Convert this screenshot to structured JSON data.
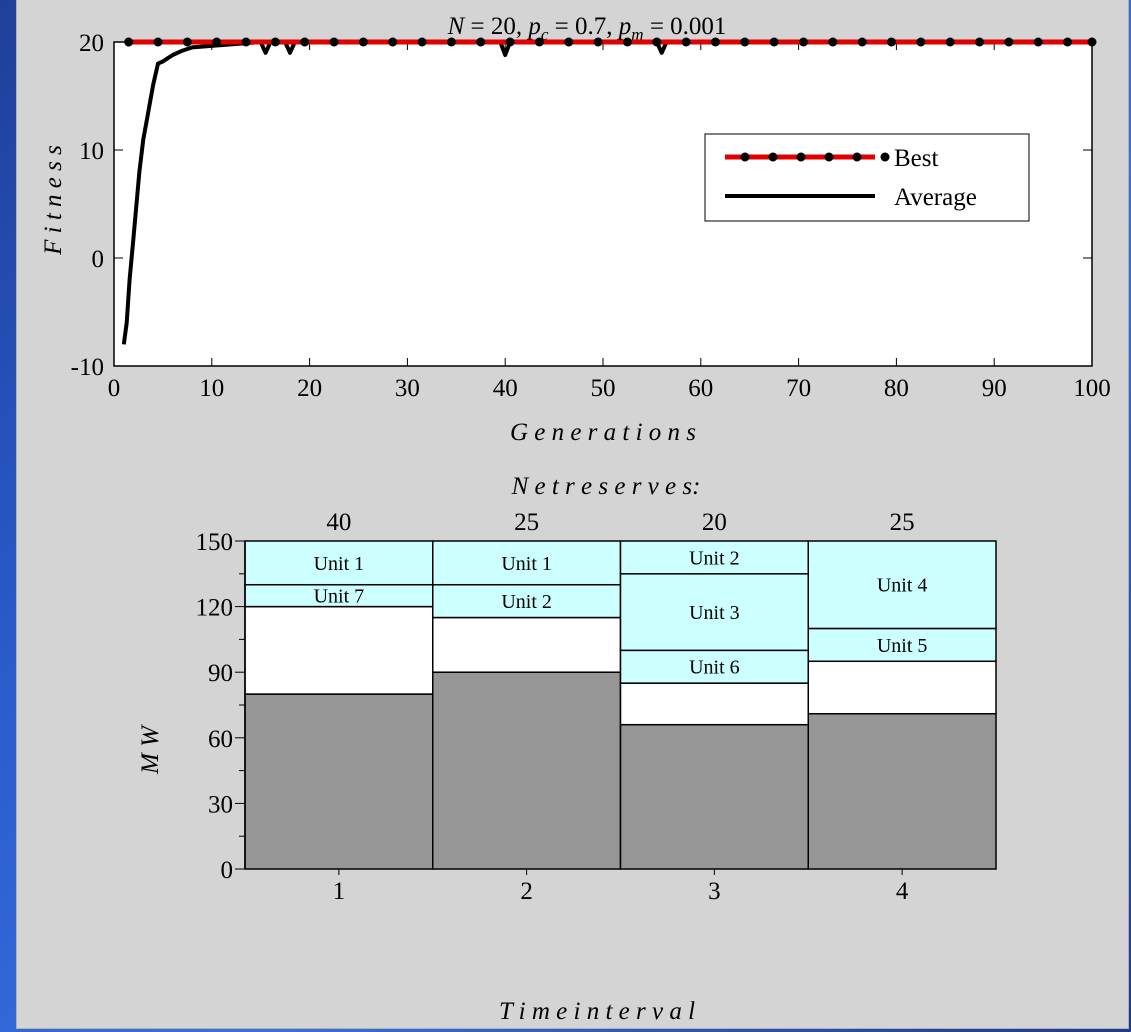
{
  "colors": {
    "best": "#e00000",
    "average": "#000000",
    "background": "#d4d4d4",
    "base": "#969696",
    "unit_fill": "#ccffff",
    "white": "#ffffff"
  },
  "chart_data": [
    {
      "type": "line",
      "title": "N = 20,  p_c = 0.7,  p_m = 0.001",
      "title_parts": {
        "N": "N",
        "N_val": " = 20,  ",
        "pc": "p",
        "pc_sub": "c",
        "pc_val": " = 0.7,  ",
        "pm": "p",
        "pm_sub": "m",
        "pm_val": " = 0.001"
      },
      "xlabel": "G e n e r a t i o n s",
      "ylabel": "F i t n e s s",
      "xlim": [
        0,
        100
      ],
      "ylim": [
        -10,
        20
      ],
      "xticks": [
        "0",
        "10",
        "20",
        "30",
        "40",
        "50",
        "60",
        "70",
        "80",
        "90",
        "100"
      ],
      "yticks": [
        "-10",
        "0",
        "10",
        "20"
      ],
      "legend_position": "upper-right",
      "series": [
        {
          "name": "Best",
          "x": [
            1.5,
            4.5,
            7.5,
            10.5,
            13.5,
            16.5,
            19.5,
            22.5,
            25.5,
            28.5,
            31.5,
            34.5,
            37.5,
            40.5,
            43.5,
            46.5,
            49.5,
            52.5,
            55.5,
            58.5,
            61.5,
            64.5,
            67.5,
            70.5,
            73.5,
            76.5,
            79.5,
            82.5,
            85.5,
            88.5,
            91.5,
            94.5,
            97.5,
            100
          ],
          "y": [
            20,
            20,
            20,
            20,
            20,
            20,
            20,
            20,
            20,
            20,
            20,
            20,
            20,
            20,
            20,
            20,
            20,
            20,
            20,
            20,
            20,
            20,
            20,
            20,
            20,
            20,
            20,
            20,
            20,
            20,
            20,
            20,
            20,
            20
          ]
        },
        {
          "name": "Average",
          "x": [
            1,
            1.3,
            1.6,
            2,
            2.3,
            2.6,
            3,
            3.3,
            3.6,
            4,
            4.5,
            5,
            5.5,
            6,
            7,
            8,
            15,
            15.5,
            16,
            17.5,
            18,
            18.5,
            39.5,
            40,
            40.5,
            55.5,
            56,
            56.5,
            100
          ],
          "y": [
            -8,
            -6,
            -2,
            2,
            5,
            8,
            11,
            12.5,
            14,
            16,
            18,
            18.2,
            18.5,
            18.8,
            19.2,
            19.5,
            20,
            19,
            20,
            20,
            19,
            20,
            20,
            18.8,
            20,
            20,
            19,
            20,
            20
          ]
        }
      ]
    },
    {
      "type": "bar",
      "title": "N e t   r e s e r v e s:",
      "categories": [
        "1",
        "2",
        "3",
        "4"
      ],
      "top_labels": [
        "40",
        "25",
        "20",
        "25"
      ],
      "xlabel": "T i m e   i n t e r v a l",
      "ylabel": "M W",
      "ylim": [
        0,
        150
      ],
      "yticks": [
        "0",
        "30",
        "60",
        "90",
        "120",
        "150"
      ],
      "segments": [
        [
          {
            "from": 0,
            "to": 80,
            "style": "base",
            "label": ""
          },
          {
            "from": 80,
            "to": 120,
            "style": "white",
            "label": ""
          },
          {
            "from": 120,
            "to": 130,
            "style": "unit",
            "label": "Unit 7"
          },
          {
            "from": 130,
            "to": 150,
            "style": "unit",
            "label": "Unit 1"
          }
        ],
        [
          {
            "from": 0,
            "to": 90,
            "style": "base",
            "label": ""
          },
          {
            "from": 90,
            "to": 115,
            "style": "white",
            "label": ""
          },
          {
            "from": 115,
            "to": 130,
            "style": "unit",
            "label": "Unit 2"
          },
          {
            "from": 130,
            "to": 150,
            "style": "unit",
            "label": "Unit 1"
          }
        ],
        [
          {
            "from": 0,
            "to": 66,
            "style": "base",
            "label": ""
          },
          {
            "from": 66,
            "to": 85,
            "style": "white",
            "label": ""
          },
          {
            "from": 85,
            "to": 100,
            "style": "unit",
            "label": "Unit 6"
          },
          {
            "from": 100,
            "to": 135,
            "style": "unit",
            "label": "Unit 3"
          },
          {
            "from": 135,
            "to": 150,
            "style": "unit",
            "label": "Unit 2"
          }
        ],
        [
          {
            "from": 0,
            "to": 71,
            "style": "base",
            "label": ""
          },
          {
            "from": 71,
            "to": 95,
            "style": "white",
            "label": ""
          },
          {
            "from": 95,
            "to": 110,
            "style": "unit",
            "label": "Unit 5"
          },
          {
            "from": 110,
            "to": 150,
            "style": "unit",
            "label": "Unit 4"
          }
        ]
      ]
    }
  ]
}
